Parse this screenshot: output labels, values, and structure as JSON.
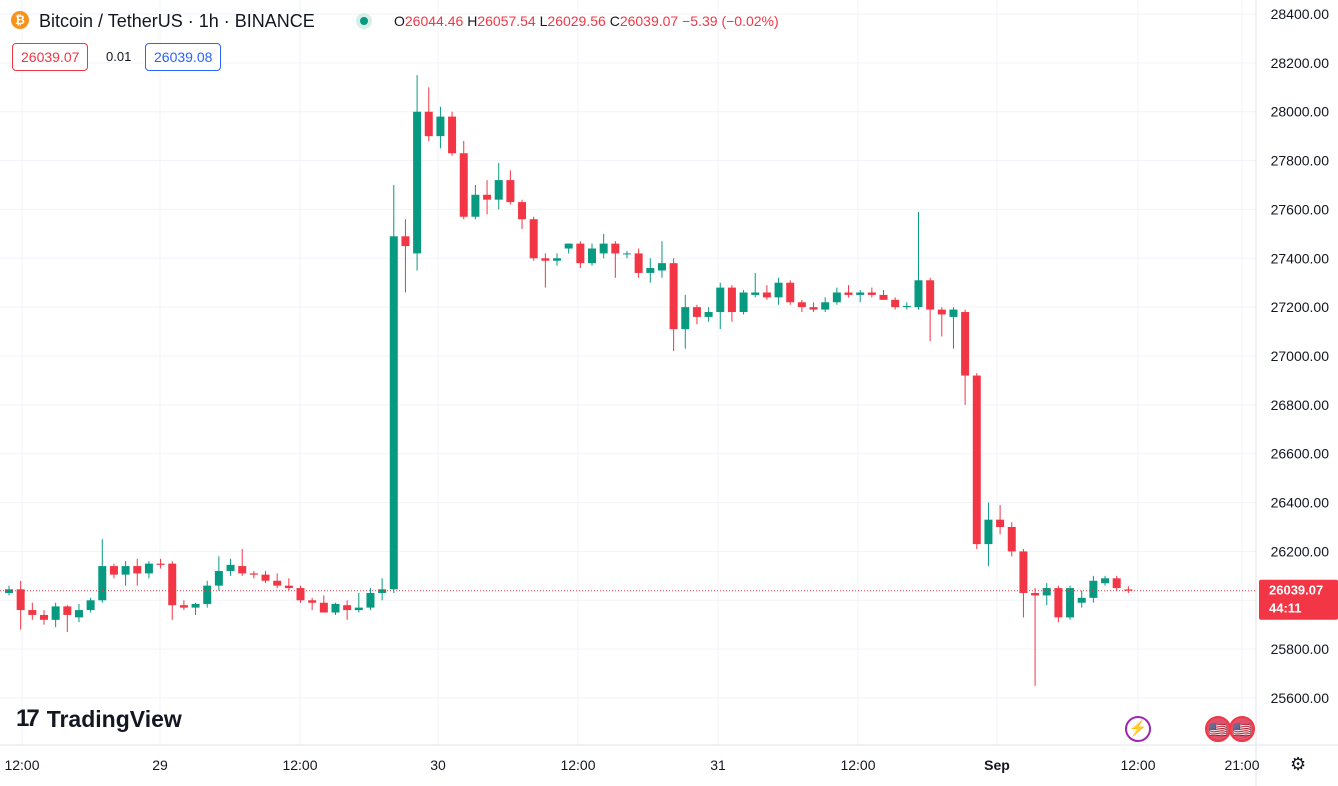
{
  "header": {
    "coin_glyph": "₿",
    "symbol_title": "Bitcoin / TetherUS · 1h · BINANCE",
    "open_label": "O",
    "open_value": "26044.46",
    "high_label": "H",
    "high_value": "26057.54",
    "low_label": "L",
    "low_value": "26029.56",
    "close_label": "C",
    "close_value": "26039.07",
    "change": "−5.39 (−0.02%)",
    "bid": "26039.07",
    "spread": "0.01",
    "ask": "26039.08"
  },
  "branding": {
    "logo_mark": "17",
    "logo_text": "TradingView"
  },
  "events": {
    "lightning_glyph": "⚡",
    "flag_glyph": "🇺🇸"
  },
  "settings_glyph": "⚙",
  "colors": {
    "up": "#089981",
    "down": "#f23645",
    "grid": "#f0f3fa",
    "text": "#131722"
  },
  "chart_data": {
    "type": "candlestick",
    "interval": "1h",
    "ylim": [
      25500,
      28450
    ],
    "y_ticks": [
      "25600.00",
      "25800.00",
      "26000.00",
      "26200.00",
      "26400.00",
      "26600.00",
      "26800.00",
      "27000.00",
      "27200.00",
      "27400.00",
      "27600.00",
      "27800.00",
      "28000.00",
      "28200.00",
      "28400.00"
    ],
    "x_ticks": [
      "12:00",
      "29",
      "12:00",
      "30",
      "12:00",
      "31",
      "12:00",
      "Sep",
      "12:00",
      "21:00"
    ],
    "last_price": "26039.07",
    "countdown": "44:11",
    "grid": true,
    "candles": [
      {
        "t": "28 11:00",
        "o": 26030,
        "h": 26060,
        "l": 26020,
        "c": 26045
      },
      {
        "t": "28 12:00",
        "o": 26045,
        "h": 26080,
        "l": 25880,
        "c": 25960
      },
      {
        "t": "28 13:00",
        "o": 25960,
        "h": 25990,
        "l": 25920,
        "c": 25940
      },
      {
        "t": "28 14:00",
        "o": 25940,
        "h": 25960,
        "l": 25900,
        "c": 25920
      },
      {
        "t": "28 15:00",
        "o": 25920,
        "h": 25990,
        "l": 25890,
        "c": 25975
      },
      {
        "t": "28 16:00",
        "o": 25975,
        "h": 25980,
        "l": 25870,
        "c": 25940
      },
      {
        "t": "28 17:00",
        "o": 25930,
        "h": 25985,
        "l": 25910,
        "c": 25960
      },
      {
        "t": "28 18:00",
        "o": 25960,
        "h": 26010,
        "l": 25950,
        "c": 26000
      },
      {
        "t": "28 19:00",
        "o": 26000,
        "h": 26250,
        "l": 25990,
        "c": 26140
      },
      {
        "t": "28 20:00",
        "o": 26140,
        "h": 26150,
        "l": 26090,
        "c": 26105
      },
      {
        "t": "28 21:00",
        "o": 26105,
        "h": 26160,
        "l": 26060,
        "c": 26140
      },
      {
        "t": "28 22:00",
        "o": 26140,
        "h": 26170,
        "l": 26060,
        "c": 26110
      },
      {
        "t": "28 23:00",
        "o": 26110,
        "h": 26160,
        "l": 26090,
        "c": 26150
      },
      {
        "t": "29 00:00",
        "o": 26150,
        "h": 26170,
        "l": 26130,
        "c": 26145
      },
      {
        "t": "29 01:00",
        "o": 26150,
        "h": 26160,
        "l": 25920,
        "c": 25980
      },
      {
        "t": "29 02:00",
        "o": 25980,
        "h": 26000,
        "l": 25960,
        "c": 25970
      },
      {
        "t": "29 03:00",
        "o": 25970,
        "h": 25990,
        "l": 25940,
        "c": 25985
      },
      {
        "t": "29 04:00",
        "o": 25985,
        "h": 26080,
        "l": 25970,
        "c": 26060
      },
      {
        "t": "29 05:00",
        "o": 26060,
        "h": 26180,
        "l": 26040,
        "c": 26120
      },
      {
        "t": "29 06:00",
        "o": 26120,
        "h": 26170,
        "l": 26100,
        "c": 26145
      },
      {
        "t": "29 07:00",
        "o": 26140,
        "h": 26210,
        "l": 26100,
        "c": 26110
      },
      {
        "t": "29 08:00",
        "o": 26110,
        "h": 26120,
        "l": 26090,
        "c": 26105
      },
      {
        "t": "29 09:00",
        "o": 26105,
        "h": 26120,
        "l": 26070,
        "c": 26080
      },
      {
        "t": "29 10:00",
        "o": 26080,
        "h": 26110,
        "l": 26050,
        "c": 26060
      },
      {
        "t": "29 11:00",
        "o": 26060,
        "h": 26090,
        "l": 26040,
        "c": 26050
      },
      {
        "t": "29 12:00",
        "o": 26050,
        "h": 26060,
        "l": 25990,
        "c": 26000
      },
      {
        "t": "29 13:00",
        "o": 26000,
        "h": 26010,
        "l": 25960,
        "c": 25990
      },
      {
        "t": "29 14:00",
        "o": 25990,
        "h": 26020,
        "l": 25950,
        "c": 25950
      },
      {
        "t": "29 15:00",
        "o": 25950,
        "h": 25990,
        "l": 25940,
        "c": 25985
      },
      {
        "t": "29 16:00",
        "o": 25980,
        "h": 26000,
        "l": 25920,
        "c": 25960
      },
      {
        "t": "29 17:00",
        "o": 25960,
        "h": 26030,
        "l": 25950,
        "c": 25970
      },
      {
        "t": "29 18:00",
        "o": 25970,
        "h": 26050,
        "l": 25960,
        "c": 26030
      },
      {
        "t": "29 19:00",
        "o": 26030,
        "h": 26090,
        "l": 26000,
        "c": 26045
      },
      {
        "t": "29 20:00",
        "o": 26045,
        "h": 27700,
        "l": 26030,
        "c": 27490
      },
      {
        "t": "29 21:00",
        "o": 27490,
        "h": 27560,
        "l": 27260,
        "c": 27450
      },
      {
        "t": "29 22:00",
        "o": 27420,
        "h": 28150,
        "l": 27350,
        "c": 28000
      },
      {
        "t": "29 23:00",
        "o": 28000,
        "h": 28100,
        "l": 27880,
        "c": 27900
      },
      {
        "t": "30 00:00",
        "o": 27900,
        "h": 28020,
        "l": 27850,
        "c": 27980
      },
      {
        "t": "30 01:00",
        "o": 27980,
        "h": 28000,
        "l": 27820,
        "c": 27830
      },
      {
        "t": "30 02:00",
        "o": 27830,
        "h": 27880,
        "l": 27560,
        "c": 27570
      },
      {
        "t": "30 03:00",
        "o": 27570,
        "h": 27700,
        "l": 27560,
        "c": 27660
      },
      {
        "t": "30 04:00",
        "o": 27660,
        "h": 27720,
        "l": 27580,
        "c": 27640
      },
      {
        "t": "30 05:00",
        "o": 27640,
        "h": 27790,
        "l": 27600,
        "c": 27720
      },
      {
        "t": "30 06:00",
        "o": 27720,
        "h": 27760,
        "l": 27620,
        "c": 27630
      },
      {
        "t": "30 07:00",
        "o": 27630,
        "h": 27640,
        "l": 27520,
        "c": 27560
      },
      {
        "t": "30 08:00",
        "o": 27560,
        "h": 27570,
        "l": 27390,
        "c": 27400
      },
      {
        "t": "30 09:00",
        "o": 27400,
        "h": 27420,
        "l": 27280,
        "c": 27390
      },
      {
        "t": "30 10:00",
        "o": 27390,
        "h": 27420,
        "l": 27370,
        "c": 27400
      },
      {
        "t": "30 11:00",
        "o": 27440,
        "h": 27460,
        "l": 27420,
        "c": 27460
      },
      {
        "t": "30 12:00",
        "o": 27460,
        "h": 27470,
        "l": 27360,
        "c": 27380
      },
      {
        "t": "30 13:00",
        "o": 27380,
        "h": 27460,
        "l": 27370,
        "c": 27440
      },
      {
        "t": "30 14:00",
        "o": 27420,
        "h": 27500,
        "l": 27400,
        "c": 27460
      },
      {
        "t": "30 15:00",
        "o": 27460,
        "h": 27470,
        "l": 27320,
        "c": 27420
      },
      {
        "t": "30 16:00",
        "o": 27420,
        "h": 27430,
        "l": 27400,
        "c": 27420
      },
      {
        "t": "30 17:00",
        "o": 27420,
        "h": 27440,
        "l": 27320,
        "c": 27340
      },
      {
        "t": "30 18:00",
        "o": 27340,
        "h": 27400,
        "l": 27300,
        "c": 27360
      },
      {
        "t": "30 19:00",
        "o": 27350,
        "h": 27470,
        "l": 27320,
        "c": 27380
      },
      {
        "t": "30 20:00",
        "o": 27380,
        "h": 27400,
        "l": 27020,
        "c": 27110
      },
      {
        "t": "30 21:00",
        "o": 27110,
        "h": 27250,
        "l": 27030,
        "c": 27200
      },
      {
        "t": "30 22:00",
        "o": 27200,
        "h": 27210,
        "l": 27130,
        "c": 27160
      },
      {
        "t": "30 23:00",
        "o": 27160,
        "h": 27200,
        "l": 27140,
        "c": 27180
      },
      {
        "t": "31 00:00",
        "o": 27180,
        "h": 27300,
        "l": 27110,
        "c": 27280
      },
      {
        "t": "31 01:00",
        "o": 27280,
        "h": 27290,
        "l": 27140,
        "c": 27180
      },
      {
        "t": "31 02:00",
        "o": 27180,
        "h": 27270,
        "l": 27170,
        "c": 27260
      },
      {
        "t": "31 03:00",
        "o": 27250,
        "h": 27340,
        "l": 27240,
        "c": 27260
      },
      {
        "t": "31 04:00",
        "o": 27260,
        "h": 27290,
        "l": 27230,
        "c": 27240
      },
      {
        "t": "31 05:00",
        "o": 27240,
        "h": 27320,
        "l": 27210,
        "c": 27300
      },
      {
        "t": "31 06:00",
        "o": 27300,
        "h": 27310,
        "l": 27210,
        "c": 27220
      },
      {
        "t": "31 07:00",
        "o": 27220,
        "h": 27230,
        "l": 27180,
        "c": 27200
      },
      {
        "t": "31 08:00",
        "o": 27200,
        "h": 27220,
        "l": 27180,
        "c": 27190
      },
      {
        "t": "31 09:00",
        "o": 27190,
        "h": 27240,
        "l": 27180,
        "c": 27220
      },
      {
        "t": "31 10:00",
        "o": 27220,
        "h": 27280,
        "l": 27210,
        "c": 27260
      },
      {
        "t": "31 11:00",
        "o": 27260,
        "h": 27290,
        "l": 27240,
        "c": 27250
      },
      {
        "t": "31 12:00",
        "o": 27250,
        "h": 27270,
        "l": 27220,
        "c": 27260
      },
      {
        "t": "31 13:00",
        "o": 27260,
        "h": 27280,
        "l": 27240,
        "c": 27250
      },
      {
        "t": "31 14:00",
        "o": 27250,
        "h": 27270,
        "l": 27230,
        "c": 27230
      },
      {
        "t": "31 15:00",
        "o": 27230,
        "h": 27240,
        "l": 27190,
        "c": 27200
      },
      {
        "t": "31 16:00",
        "o": 27200,
        "h": 27220,
        "l": 27190,
        "c": 27205
      },
      {
        "t": "31 17:00",
        "o": 27200,
        "h": 27590,
        "l": 27190,
        "c": 27310
      },
      {
        "t": "31 18:00",
        "o": 27310,
        "h": 27320,
        "l": 27060,
        "c": 27190
      },
      {
        "t": "31 19:00",
        "o": 27190,
        "h": 27200,
        "l": 27080,
        "c": 27170
      },
      {
        "t": "31 20:00",
        "o": 27160,
        "h": 27200,
        "l": 27030,
        "c": 27190
      },
      {
        "t": "31 21:00",
        "o": 27180,
        "h": 27190,
        "l": 26800,
        "c": 26920
      },
      {
        "t": "31 22:00",
        "o": 26920,
        "h": 26930,
        "l": 26210,
        "c": 26230
      },
      {
        "t": "31 23:00",
        "o": 26230,
        "h": 26400,
        "l": 26140,
        "c": 26330
      },
      {
        "t": "01 00:00",
        "o": 26330,
        "h": 26390,
        "l": 26270,
        "c": 26300
      },
      {
        "t": "01 01:00",
        "o": 26300,
        "h": 26320,
        "l": 26180,
        "c": 26200
      },
      {
        "t": "01 02:00",
        "o": 26200,
        "h": 26210,
        "l": 25930,
        "c": 26030
      },
      {
        "t": "01 03:00",
        "o": 26030,
        "h": 26050,
        "l": 25650,
        "c": 26020
      },
      {
        "t": "01 04:00",
        "o": 26020,
        "h": 26070,
        "l": 25980,
        "c": 26050
      },
      {
        "t": "01 05:00",
        "o": 26050,
        "h": 26060,
        "l": 25910,
        "c": 25930
      },
      {
        "t": "01 06:00",
        "o": 25930,
        "h": 26060,
        "l": 25920,
        "c": 26050
      },
      {
        "t": "01 07:00",
        "o": 25990,
        "h": 26040,
        "l": 25970,
        "c": 26010
      },
      {
        "t": "01 08:00",
        "o": 26010,
        "h": 26100,
        "l": 25990,
        "c": 26080
      },
      {
        "t": "01 09:00",
        "o": 26070,
        "h": 26100,
        "l": 26060,
        "c": 26090
      },
      {
        "t": "01 10:00",
        "o": 26090,
        "h": 26100,
        "l": 26040,
        "c": 26050
      },
      {
        "t": "01 11:00",
        "o": 26044.46,
        "h": 26057.54,
        "l": 26029.56,
        "c": 26039.07
      }
    ]
  }
}
